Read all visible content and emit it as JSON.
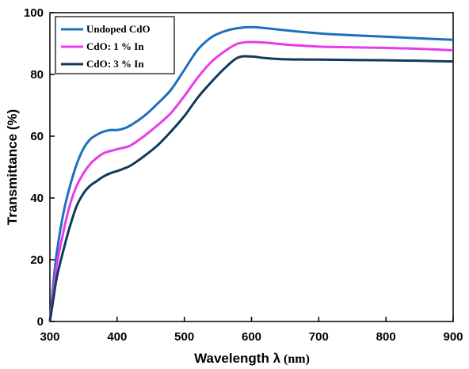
{
  "chart_data": {
    "type": "line",
    "xlabel": "Wavelength λ",
    "xlabel_unit": "(nm)",
    "ylabel": "Transmittance (%)",
    "xlim": [
      300,
      900
    ],
    "ylim": [
      0,
      100
    ],
    "x_ticks": [
      300,
      400,
      500,
      600,
      700,
      800,
      900
    ],
    "y_ticks": [
      0,
      20,
      40,
      60,
      80,
      100
    ],
    "x_tick_labels": [
      "300",
      "400",
      "500",
      "600",
      "700",
      "800",
      "900"
    ],
    "y_tick_labels": [
      "0",
      "20",
      "40",
      "60",
      "80",
      "100"
    ],
    "grid": false,
    "legend_position": "top-left",
    "series": [
      {
        "name": "Undoped CdO",
        "color": "#1e6fbd",
        "x": [
          300,
          305,
          310,
          320,
          330,
          340,
          350,
          360,
          370,
          380,
          390,
          400,
          410,
          420,
          440,
          460,
          480,
          500,
          520,
          540,
          560,
          580,
          600,
          620,
          650,
          700,
          750,
          800,
          850,
          900
        ],
        "y": [
          0,
          12,
          22,
          35,
          44,
          51,
          56,
          59,
          60.5,
          61.5,
          62,
          62,
          62.5,
          63.5,
          66.5,
          70.5,
          75,
          81.5,
          88,
          92,
          94,
          95,
          95.3,
          95,
          94.3,
          93.3,
          92.7,
          92.2,
          91.7,
          91.2
        ]
      },
      {
        "name": "CdO: 1 % In",
        "color": "#e83ce8",
        "x": [
          300,
          305,
          310,
          320,
          330,
          340,
          350,
          360,
          370,
          380,
          390,
          400,
          410,
          420,
          440,
          460,
          480,
          500,
          520,
          540,
          560,
          580,
          600,
          620,
          650,
          700,
          750,
          800,
          850,
          900
        ],
        "y": [
          0,
          9,
          18,
          29,
          38,
          44,
          48,
          51,
          53,
          54.5,
          55.2,
          55.8,
          56.3,
          57,
          60,
          63.5,
          67.5,
          73,
          79,
          84,
          87.5,
          90,
          90.5,
          90.3,
          89.7,
          89,
          88.8,
          88.6,
          88.3,
          87.8
        ]
      },
      {
        "name": "CdO: 3 % In",
        "color": "#0f3a5a",
        "x": [
          300,
          305,
          310,
          320,
          330,
          340,
          350,
          360,
          370,
          380,
          390,
          400,
          410,
          420,
          440,
          460,
          480,
          500,
          520,
          540,
          560,
          580,
          600,
          620,
          650,
          700,
          750,
          800,
          850,
          900
        ],
        "y": [
          0,
          7,
          14,
          23,
          31,
          37.5,
          41.5,
          44,
          45.5,
          47,
          48,
          48.7,
          49.5,
          50.5,
          53.5,
          57,
          61.5,
          66.5,
          72.5,
          77.5,
          82,
          85.5,
          85.8,
          85.3,
          84.9,
          84.8,
          84.7,
          84.6,
          84.4,
          84.2
        ]
      }
    ]
  }
}
